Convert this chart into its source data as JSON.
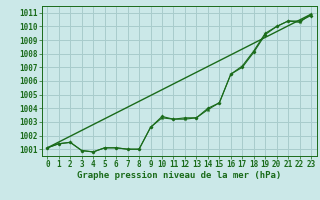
{
  "title": "Graphe pression niveau de la mer (hPa)",
  "background_color": "#cbe8e8",
  "grid_color": "#a8cccc",
  "line_color": "#1a6b1a",
  "ylim": [
    1000.5,
    1011.5
  ],
  "yticks": [
    1001,
    1002,
    1003,
    1004,
    1005,
    1006,
    1007,
    1008,
    1009,
    1010,
    1011
  ],
  "xlim": [
    -0.5,
    23.5
  ],
  "xticks": [
    0,
    1,
    2,
    3,
    4,
    5,
    6,
    7,
    8,
    9,
    10,
    11,
    12,
    13,
    14,
    15,
    16,
    17,
    18,
    19,
    20,
    21,
    22,
    23
  ],
  "series_noisy_y": [
    1001.1,
    1001.4,
    1001.5,
    1000.9,
    1000.8,
    1001.1,
    1001.1,
    1001.0,
    1001.0,
    1002.6,
    1003.4,
    1003.2,
    1003.3,
    1003.3,
    1004.0,
    1004.4,
    1006.5,
    1007.0,
    1008.1,
    1009.4,
    1010.0,
    1010.4,
    1010.4,
    1010.8
  ],
  "series_smooth_y": [
    1001.1,
    1001.4,
    1001.5,
    1000.9,
    1000.8,
    1001.1,
    1001.1,
    1001.0,
    1001.0,
    1002.6,
    1003.3,
    1003.2,
    1003.2,
    1003.3,
    1003.9,
    1004.4,
    1006.5,
    1007.1,
    1008.2,
    1009.5,
    1010.0,
    1010.4,
    1010.3,
    1010.9
  ],
  "trend_x": [
    0,
    23
  ],
  "trend_y": [
    1001.1,
    1010.9
  ],
  "tick_fontsize": 5.5,
  "label_fontsize": 6.5
}
